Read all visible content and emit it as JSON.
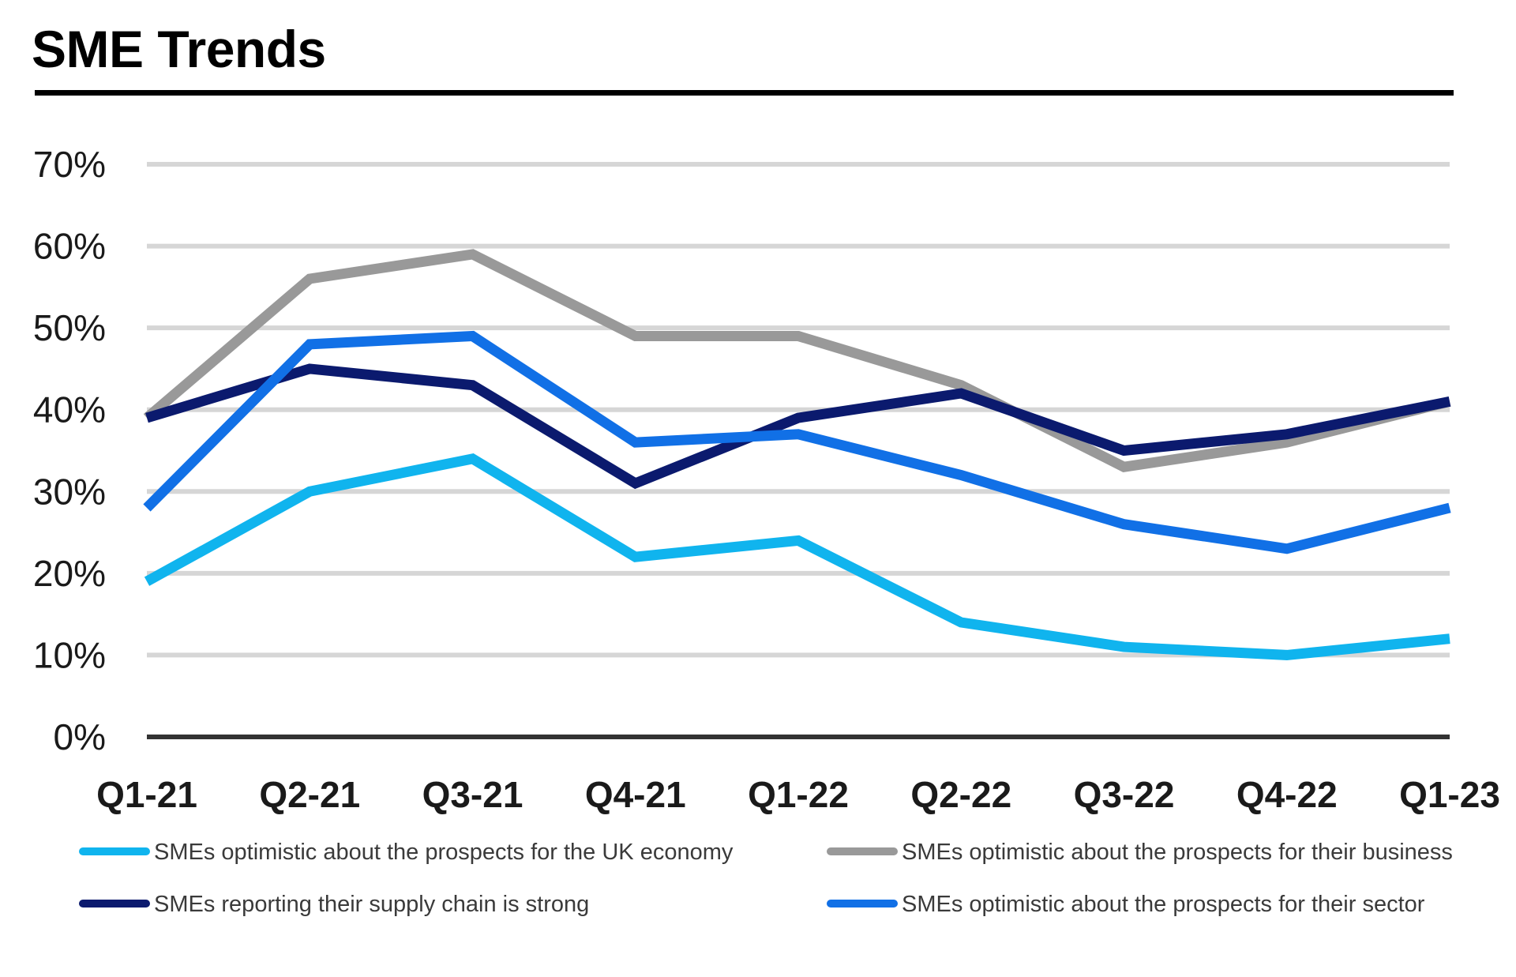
{
  "chart_data": {
    "type": "line",
    "title": "SME Trends",
    "xlabel": "",
    "ylabel": "",
    "ylim": [
      0,
      70
    ],
    "yticks": [
      "0%",
      "10%",
      "20%",
      "30%",
      "40%",
      "50%",
      "60%",
      "70%"
    ],
    "categories": [
      "Q1-21",
      "Q2-21",
      "Q3-21",
      "Q4-21",
      "Q1-22",
      "Q2-22",
      "Q3-22",
      "Q4-22",
      "Q1-23"
    ],
    "grid": true,
    "legend_position": "bottom",
    "series": [
      {
        "name": "SMEs optimistic about the prospects for their business",
        "color": "#999999",
        "values": [
          39,
          56,
          59,
          49,
          49,
          43,
          33,
          36,
          41
        ]
      },
      {
        "name": "SMEs reporting their supply chain is strong",
        "color": "#0b1a6e",
        "values": [
          39,
          45,
          43,
          31,
          39,
          42,
          35,
          37,
          41
        ]
      },
      {
        "name": "SMEs optimistic about the prospects for their sector",
        "color": "#1170e6",
        "values": [
          28,
          48,
          49,
          36,
          37,
          32,
          26,
          23,
          28
        ]
      },
      {
        "name": "SMEs optimistic about the prospects for the UK economy",
        "color": "#10b4ee",
        "values": [
          19,
          30,
          34,
          22,
          24,
          14,
          11,
          10,
          12
        ]
      }
    ],
    "legend_order": [
      "SMEs optimistic about the prospects for the UK economy",
      "SMEs optimistic about the prospects for their business",
      "SMEs reporting their supply chain is strong",
      "SMEs optimistic about the prospects for their sector"
    ]
  }
}
